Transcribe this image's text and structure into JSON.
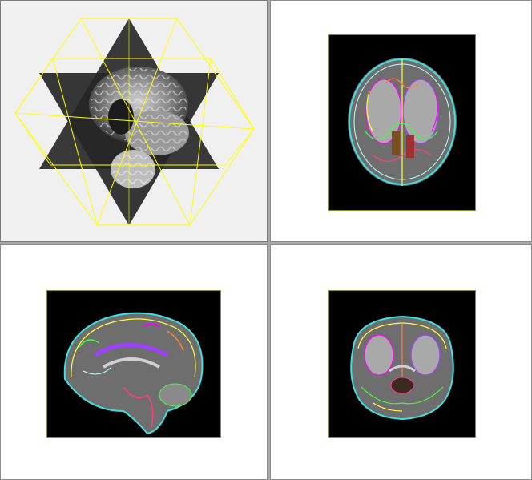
{
  "viewer": {
    "layout": "2x2",
    "panes": [
      {
        "id": "3d",
        "view": "3d-orthogonal-slices",
        "background": "#f0f0f0",
        "frame_color": "#ffff00"
      },
      {
        "id": "axial",
        "view": "axial",
        "background": "#ffffff",
        "slice_background": "#000000",
        "frame_color": "#8f8a2a"
      },
      {
        "id": "sagittal",
        "view": "sagittal",
        "background": "#ffffff",
        "slice_background": "#000000",
        "frame_color": "#8f8a2a"
      },
      {
        "id": "coronal",
        "view": "coronal",
        "background": "#ffffff",
        "slice_background": "#000000",
        "frame_color": "#8f8a2a"
      }
    ],
    "segmentation_palette": [
      "#40e0e0",
      "#ff00ff",
      "#ffff40",
      "#ff8040",
      "#40ff40",
      "#a040ff",
      "#ff4080",
      "#c0ffff"
    ]
  }
}
